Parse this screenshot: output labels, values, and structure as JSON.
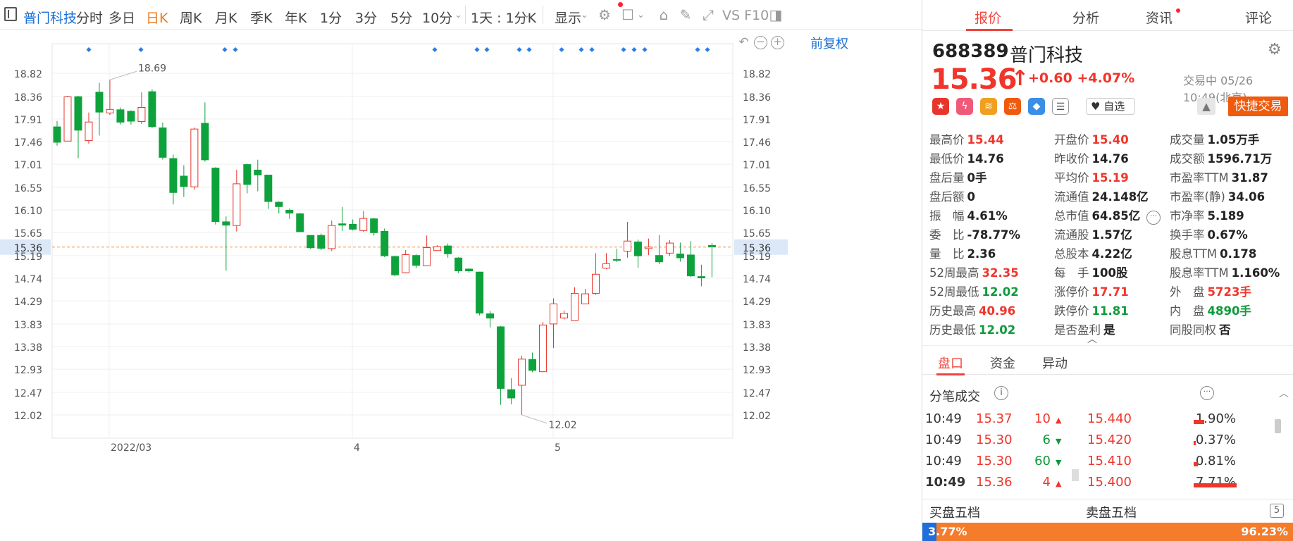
{
  "toolbar": {
    "stock": "普门科技",
    "periods": [
      "分时",
      "多日",
      "日K",
      "周K",
      "月K",
      "季K",
      "年K",
      "1分",
      "3分",
      "5分",
      "10分"
    ],
    "active_period": "日K",
    "interval": "1天 : 1分K",
    "display": "显示",
    "indicators": "VS F10",
    "restore": "前复权"
  },
  "chart_data": {
    "type": "candlestick",
    "y_ticks": [
      "18.82",
      "18.36",
      "17.91",
      "17.46",
      "17.01",
      "16.55",
      "16.10",
      "15.65",
      "15.19",
      "14.74",
      "14.29",
      "13.83",
      "13.38",
      "12.93",
      "12.47",
      "12.02"
    ],
    "x_labels": [
      "2022/03",
      "4",
      "5"
    ],
    "current_price_label": "15.36",
    "high_annotation": "18.69",
    "low_annotation": "12.02",
    "candles": [
      [
        17.76,
        17.44,
        17.87,
        17.38
      ],
      [
        17.47,
        18.35,
        18.37,
        17.47
      ],
      [
        18.36,
        17.68,
        18.37,
        17.13
      ],
      [
        17.48,
        17.85,
        18.04,
        17.42
      ],
      [
        18.45,
        18.04,
        18.63,
        17.58
      ],
      [
        18.03,
        18.1,
        18.69,
        17.99
      ],
      [
        18.1,
        17.84,
        18.14,
        17.8
      ],
      [
        18.07,
        17.86,
        18.08,
        17.8
      ],
      [
        17.86,
        18.14,
        18.44,
        17.81
      ],
      [
        18.46,
        17.75,
        18.5,
        17.73
      ],
      [
        17.74,
        17.14,
        17.84,
        17.1
      ],
      [
        17.13,
        16.44,
        17.2,
        16.21
      ],
      [
        16.78,
        16.56,
        16.99,
        16.36
      ],
      [
        16.56,
        17.71,
        17.74,
        16.5
      ],
      [
        17.83,
        17.09,
        18.24,
        17.06
      ],
      [
        16.94,
        15.86,
        16.95,
        15.81
      ],
      [
        15.87,
        15.79,
        15.97,
        14.89
      ],
      [
        15.79,
        16.62,
        16.9,
        15.67
      ],
      [
        17.01,
        16.6,
        17.02,
        16.43
      ],
      [
        16.9,
        16.79,
        17.1,
        16.47
      ],
      [
        16.8,
        16.26,
        16.8,
        16.12
      ],
      [
        16.26,
        16.16,
        16.27,
        16.03
      ],
      [
        16.1,
        16.03,
        16.13,
        15.92
      ],
      [
        16.03,
        15.66,
        16.04,
        15.66
      ],
      [
        15.6,
        15.34,
        15.6,
        15.32
      ],
      [
        15.6,
        15.33,
        15.63,
        15.3
      ],
      [
        15.33,
        15.79,
        15.89,
        15.28
      ],
      [
        15.83,
        15.79,
        16.16,
        15.68
      ],
      [
        15.82,
        15.71,
        15.91,
        15.69
      ],
      [
        15.69,
        15.93,
        16.08,
        15.66
      ],
      [
        15.93,
        15.64,
        15.94,
        15.59
      ],
      [
        15.68,
        15.18,
        15.73,
        15.16
      ],
      [
        15.18,
        14.8,
        15.19,
        14.78
      ],
      [
        14.85,
        15.21,
        15.3,
        14.84
      ],
      [
        15.2,
        14.99,
        15.22,
        14.94
      ],
      [
        14.99,
        15.35,
        15.59,
        14.99
      ],
      [
        15.29,
        15.37,
        15.4,
        15.3
      ],
      [
        15.39,
        15.22,
        15.43,
        15.15
      ],
      [
        15.15,
        14.88,
        15.16,
        14.84
      ],
      [
        14.93,
        14.88,
        14.94,
        14.85
      ],
      [
        14.87,
        14.04,
        14.87,
        14.0
      ],
      [
        14.04,
        13.94,
        14.09,
        13.76
      ],
      [
        13.78,
        12.54,
        13.79,
        12.22
      ],
      [
        12.53,
        12.35,
        12.75,
        12.23
      ],
      [
        12.61,
        13.13,
        13.2,
        12.02
      ],
      [
        13.13,
        12.9,
        13.26,
        12.87
      ],
      [
        12.88,
        13.81,
        13.87,
        12.87
      ],
      [
        13.83,
        14.23,
        14.34,
        13.35
      ],
      [
        13.95,
        14.04,
        14.1,
        13.92
      ],
      [
        13.9,
        14.44,
        14.56,
        13.91
      ],
      [
        14.23,
        14.43,
        14.53,
        14.23
      ],
      [
        14.44,
        14.82,
        15.24,
        14.41
      ],
      [
        14.94,
        15.03,
        15.24,
        14.92
      ],
      [
        15.12,
        15.09,
        15.33,
        15.06
      ],
      [
        15.28,
        15.48,
        15.86,
        15.15
      ],
      [
        15.47,
        15.18,
        15.51,
        14.95
      ],
      [
        15.33,
        15.36,
        15.53,
        15.2
      ],
      [
        15.2,
        15.06,
        15.6,
        15.02
      ],
      [
        15.24,
        15.44,
        15.5,
        15.18
      ],
      [
        15.23,
        15.14,
        15.45,
        15.07
      ],
      [
        15.21,
        14.78,
        15.48,
        14.76
      ],
      [
        14.78,
        14.74,
        15.01,
        14.58
      ],
      [
        15.4,
        15.36,
        15.44,
        14.76
      ]
    ]
  },
  "panel": {
    "tabs": [
      "报价",
      "分析",
      "资讯",
      "评论"
    ],
    "code": "688389",
    "name": "普门科技",
    "price": "15.36",
    "change": "+0.60",
    "change_pct": "+4.07%",
    "status": "交易中 05/26 10:49(北京)",
    "fav": "自选",
    "trade": "快捷交易",
    "quote": [
      [
        [
          "最高价",
          "15.44",
          "red"
        ],
        [
          "开盘价",
          "15.40",
          "red"
        ],
        [
          "成交量",
          "1.05万手",
          ""
        ]
      ],
      [
        [
          "最低价",
          "14.76",
          ""
        ],
        [
          "昨收价",
          "14.76",
          ""
        ],
        [
          "成交额",
          "1596.71万",
          ""
        ]
      ],
      [
        [
          "盘后量",
          "0手",
          ""
        ],
        [
          "平均价",
          "15.19",
          "red"
        ],
        [
          "市盈率TTM",
          "31.87",
          ""
        ]
      ],
      [
        [
          "盘后额",
          "0",
          ""
        ],
        [
          "流通值",
          "24.148亿",
          ""
        ],
        [
          "市盈率(静)",
          "34.06",
          ""
        ]
      ],
      [
        [
          "振　幅",
          "4.61%",
          ""
        ],
        [
          "总市值",
          "64.85亿",
          ""
        ],
        [
          "市净率",
          "5.189",
          ""
        ]
      ],
      [
        [
          "委　比",
          "-78.77%",
          ""
        ],
        [
          "流通股",
          "1.57亿",
          ""
        ],
        [
          "换手率",
          "0.67%",
          ""
        ]
      ],
      [
        [
          "量　比",
          "2.36",
          ""
        ],
        [
          "总股本",
          "4.22亿",
          ""
        ],
        [
          "股息TTM",
          "0.178",
          ""
        ]
      ],
      [
        [
          "52周最高",
          "32.35",
          "red"
        ],
        [
          "每　手",
          "100股",
          ""
        ],
        [
          "股息率TTM",
          "1.160%",
          ""
        ]
      ],
      [
        [
          "52周最低",
          "12.02",
          "green"
        ],
        [
          "涨停价",
          "17.71",
          "red"
        ],
        [
          "外　盘",
          "5723手",
          "red"
        ]
      ],
      [
        [
          "历史最高",
          "40.96",
          "red"
        ],
        [
          "跌停价",
          "11.81",
          "green"
        ],
        [
          "内　盘",
          "4890手",
          "green"
        ]
      ],
      [
        [
          "历史最低",
          "12.02",
          "green"
        ],
        [
          "是否盈利",
          "是",
          ""
        ],
        [
          "同股同权",
          "否",
          ""
        ]
      ]
    ],
    "subtabs": [
      "盘口",
      "资金",
      "异动"
    ],
    "tick_title": "分笔成交",
    "ticks": [
      {
        "time": "10:49",
        "price": "15.37",
        "vol": "10",
        "dir": "up",
        "level": "15.440",
        "bar": 0.22,
        "pct": "1.90%"
      },
      {
        "time": "10:49",
        "price": "15.30",
        "vol": "6",
        "dir": "dn",
        "level": "15.420",
        "bar": 0.04,
        "pct": "0.37%"
      },
      {
        "time": "10:49",
        "price": "15.30",
        "vol": "60",
        "dir": "dn",
        "level": "15.410",
        "bar": 0.09,
        "pct": "0.81%"
      },
      {
        "time": "10:49",
        "price": "15.36",
        "vol": "4",
        "dir": "up",
        "level": "15.400",
        "bar": 0.87,
        "pct": "7.71%"
      }
    ],
    "bid_label": "买盘五档",
    "ask_label": "卖盘五档",
    "bid_pct": "3.77%",
    "ask_pct": "96.23%"
  }
}
